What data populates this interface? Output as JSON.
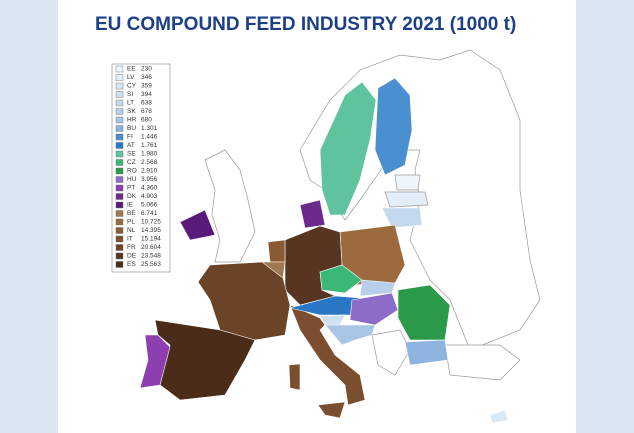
{
  "title": "EU COMPOUND FEED INDUSTRY 2021 (1000 t)",
  "legend": [
    {
      "code": "EE",
      "value": "230",
      "color": "#eef5fa"
    },
    {
      "code": "LV",
      "value": "346",
      "color": "#e3eef8"
    },
    {
      "code": "CY",
      "value": "359",
      "color": "#d9e8f5"
    },
    {
      "code": "SI",
      "value": "394",
      "color": "#cfe1f1"
    },
    {
      "code": "LT",
      "value": "638",
      "color": "#c4d9ee"
    },
    {
      "code": "SK",
      "value": "678",
      "color": "#b7cfea"
    },
    {
      "code": "HR",
      "value": "680",
      "color": "#a8c5e6"
    },
    {
      "code": "BU",
      "value": "1.301",
      "color": "#8db4df"
    },
    {
      "code": "FI",
      "value": "1.446",
      "color": "#4a90d0"
    },
    {
      "code": "AT",
      "value": "1.761",
      "color": "#2a78c5"
    },
    {
      "code": "SE",
      "value": "1.980",
      "color": "#5fc49e"
    },
    {
      "code": "CZ",
      "value": "2.568",
      "color": "#3bb878"
    },
    {
      "code": "RO",
      "value": "2.910",
      "color": "#2a9a4a"
    },
    {
      "code": "HU",
      "value": "3.956",
      "color": "#8b6cc8"
    },
    {
      "code": "PT",
      "value": "4.360",
      "color": "#8d3fb0"
    },
    {
      "code": "DK",
      "value": "4.903",
      "color": "#6b2a8a"
    },
    {
      "code": "IE",
      "value": "5.066",
      "color": "#5a1a7a"
    },
    {
      "code": "BE",
      "value": "6.741",
      "color": "#a07850"
    },
    {
      "code": "PL",
      "value": "10.725",
      "color": "#9b6a3e"
    },
    {
      "code": "NL",
      "value": "14.395",
      "color": "#8a5a34"
    },
    {
      "code": "IT",
      "value": "15.194",
      "color": "#7a4e2e"
    },
    {
      "code": "FR",
      "value": "20.604",
      "color": "#6b4428"
    },
    {
      "code": "DE",
      "value": "23.548",
      "color": "#573520"
    },
    {
      "code": "ES",
      "value": "25.563",
      "color": "#4a2c18"
    }
  ]
}
